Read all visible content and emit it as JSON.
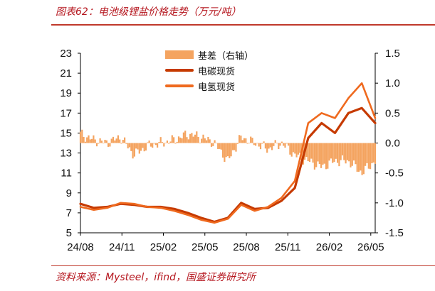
{
  "header": {
    "title": "图表62：电池级锂盐价格走势（万元/吨）"
  },
  "footer": {
    "source": "资料来源：Mysteel，ifind，国盛证券研究所"
  },
  "chart_data": {
    "type": "line",
    "x_ticks": [
      "24/08",
      "24/11",
      "25/02",
      "25/05",
      "25/08",
      "25/11",
      "26/02",
      "26/05"
    ],
    "y_left": {
      "ticks": [
        5,
        7,
        9,
        11,
        13,
        15,
        17,
        19,
        21,
        23
      ],
      "range": [
        5,
        23
      ]
    },
    "y_right": {
      "ticks": [
        1.5,
        1.0,
        0.5,
        0.0,
        -0.5,
        -1.0,
        -1.5
      ],
      "range": [
        -1.5,
        1.5
      ]
    },
    "x": [
      "24/08",
      "24/09",
      "24/10",
      "24/11",
      "24/12",
      "25/01",
      "25/02",
      "25/03",
      "25/04",
      "25/05",
      "25/06",
      "25/07",
      "25/08",
      "25/09",
      "25/10",
      "25/11",
      "25/12",
      "26/01",
      "26/02",
      "26/03",
      "26/04",
      "26/05",
      "26/06"
    ],
    "series": [
      {
        "name": "电碳现货",
        "axis": "left",
        "color": "#c63a00",
        "values": [
          7.9,
          7.5,
          7.6,
          7.9,
          7.8,
          7.6,
          7.6,
          7.4,
          7.0,
          6.5,
          6.1,
          6.5,
          8.0,
          7.4,
          7.5,
          8.2,
          9.5,
          14.5,
          16.0,
          15.0,
          17.0,
          17.5,
          16.0
        ]
      },
      {
        "name": "电氢现货",
        "axis": "left",
        "color": "#ef6a1f",
        "values": [
          7.6,
          7.3,
          7.5,
          8.0,
          7.9,
          7.6,
          7.5,
          7.2,
          6.8,
          6.3,
          6.0,
          6.4,
          7.8,
          7.2,
          7.6,
          8.5,
          10.2,
          16.0,
          17.0,
          16.5,
          18.5,
          20.0,
          16.5
        ]
      },
      {
        "name": "基差（右轴）",
        "axis": "right",
        "type": "area",
        "color": "#f4a460",
        "values": [
          0.15,
          0.05,
          0.0,
          0.1,
          -0.2,
          -0.05,
          0.0,
          0.05,
          0.15,
          0.1,
          0.0,
          -0.3,
          0.1,
          0.0,
          -0.1,
          0.0,
          -0.2,
          -0.3,
          -0.4,
          -0.3,
          -0.3,
          -0.5,
          -0.3
        ]
      }
    ]
  }
}
